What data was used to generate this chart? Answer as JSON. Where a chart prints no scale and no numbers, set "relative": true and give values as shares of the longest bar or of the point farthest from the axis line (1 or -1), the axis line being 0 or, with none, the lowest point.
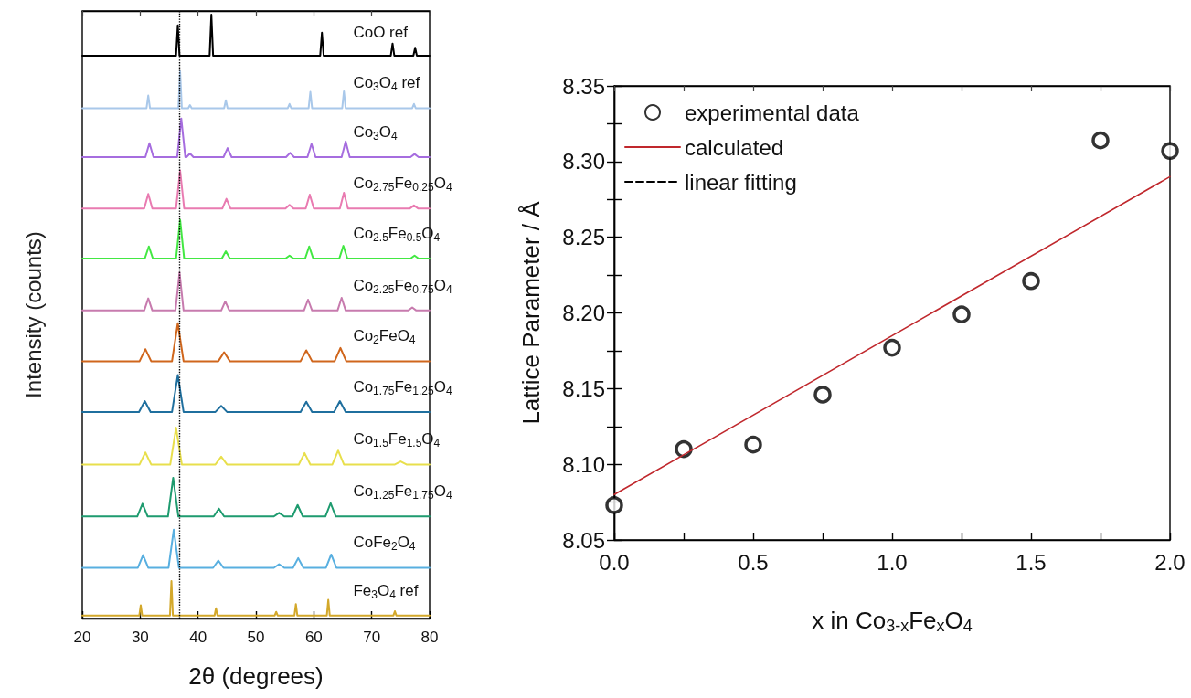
{
  "chart_data": [
    {
      "type": "line",
      "relative": true,
      "xlabel": "2θ (degrees)",
      "ylabel": "Intensity (counts)",
      "xlim": [
        20,
        80
      ],
      "xticks": [
        20,
        30,
        40,
        50,
        60,
        70,
        80
      ],
      "legend": false,
      "grid": false,
      "marker": "none",
      "ref_lines": [
        {
          "axis": "x",
          "value": 36.8,
          "line_style": "dotted",
          "color": "#000000"
        }
      ],
      "series": [
        {
          "name": "CoO ref",
          "color": "#000000",
          "x": [
            20,
            36.2,
            36.5,
            36.8,
            42,
            42.3,
            42.6,
            61.1,
            61.4,
            61.7,
            73.3,
            73.6,
            73.9,
            77.2,
            77.5,
            77.8,
            80
          ],
          "values": [
            0.932,
            0.932,
            0.982,
            0.932,
            0.932,
            1,
            0.932,
            0.932,
            0.97,
            0.932,
            0.932,
            0.952,
            0.932,
            0.932,
            0.945,
            0.932,
            0.932
          ]
        },
        {
          "name": "Co$_{3}$O$_{4}$ ref",
          "color": "#a9c8ea",
          "x": [
            20,
            31.1,
            31.4,
            31.7,
            36.6,
            36.9,
            37.2,
            38.3,
            38.6,
            38.9,
            44.5,
            44.8,
            45.1,
            55.5,
            55.8,
            56.1,
            59.1,
            59.4,
            59.7,
            64.9,
            65.2,
            65.5,
            77,
            77.3,
            77.6,
            80
          ],
          "values": [
            0.845,
            0.845,
            0.866,
            0.845,
            0.845,
            0.906,
            0.845,
            0.845,
            0.85,
            0.845,
            0.845,
            0.858,
            0.845,
            0.845,
            0.852,
            0.845,
            0.845,
            0.872,
            0.845,
            0.845,
            0.873,
            0.845,
            0.845,
            0.852,
            0.845,
            0.845
          ]
        },
        {
          "name": "Co$_{3}$O$_{4}$",
          "color": "#a66ddf",
          "x": [
            20,
            30.9,
            31.6,
            32.3,
            36.4,
            37.1,
            37.8,
            38.0,
            38.6,
            39.2,
            44.4,
            45.1,
            45.8,
            55.2,
            55.9,
            56.6,
            58.9,
            59.6,
            60.3,
            64.8,
            65.5,
            66.2,
            76.7,
            77.4,
            78.1,
            80
          ],
          "values": [
            0.764,
            0.764,
            0.787,
            0.764,
            0.764,
            0.828,
            0.764,
            0.764,
            0.77,
            0.764,
            0.764,
            0.779,
            0.764,
            0.764,
            0.771,
            0.764,
            0.764,
            0.786,
            0.764,
            0.764,
            0.79,
            0.764,
            0.764,
            0.769,
            0.764,
            0.764
          ]
        },
        {
          "name": "Co$_{2.75}$Fe$_{0.25}$O$_{4}$",
          "color": "#e97bb1",
          "x": [
            20,
            30.7,
            31.4,
            32.1,
            36.2,
            36.9,
            37.6,
            44.2,
            44.9,
            45.6,
            55.1,
            55.8,
            56.5,
            58.6,
            59.3,
            60,
            64.5,
            65.2,
            65.9,
            76.6,
            77.3,
            78,
            80
          ],
          "values": [
            0.679,
            0.679,
            0.703,
            0.679,
            0.679,
            0.742,
            0.679,
            0.679,
            0.695,
            0.679,
            0.679,
            0.685,
            0.679,
            0.679,
            0.702,
            0.679,
            0.679,
            0.705,
            0.679,
            0.679,
            0.684,
            0.679,
            0.679
          ]
        },
        {
          "name": "Co$_{2.5}$Fe$_{0.5}$O$_{4}$",
          "color": "#43e843",
          "x": [
            20,
            30.8,
            31.5,
            32.2,
            36.2,
            36.9,
            37.6,
            44.1,
            44.8,
            45.5,
            55.1,
            55.8,
            56.5,
            58.5,
            59.2,
            59.9,
            64.4,
            65.1,
            65.8,
            76.7,
            77.4,
            78.1,
            80
          ],
          "values": [
            0.596,
            0.596,
            0.616,
            0.596,
            0.596,
            0.66,
            0.596,
            0.596,
            0.608,
            0.596,
            0.596,
            0.601,
            0.596,
            0.596,
            0.616,
            0.596,
            0.596,
            0.617,
            0.596,
            0.596,
            0.601,
            0.596,
            0.596
          ]
        },
        {
          "name": "Co$_{2.25}$Fe$_{0.75}$O$_{4}$",
          "color": "#c77bae",
          "x": [
            20,
            30.7,
            31.4,
            32.1,
            36.1,
            36.8,
            37.5,
            44,
            44.7,
            45.4,
            58.3,
            59,
            59.7,
            64.1,
            64.8,
            65.5,
            76.3,
            77,
            77.7,
            80
          ],
          "values": [
            0.51,
            0.51,
            0.53,
            0.51,
            0.51,
            0.573,
            0.51,
            0.51,
            0.525,
            0.51,
            0.51,
            0.528,
            0.51,
            0.51,
            0.531,
            0.51,
            0.51,
            0.515,
            0.51,
            0.51
          ]
        },
        {
          "name": "Co$_{2}$FeO$_{4}$",
          "color": "#d0661c",
          "x": [
            20,
            29.9,
            30.9,
            31.9,
            35.5,
            36.5,
            37.5,
            43.5,
            44.5,
            45.5,
            57.7,
            58.7,
            59.7,
            63.6,
            64.6,
            65.6,
            80
          ],
          "values": [
            0.426,
            0.426,
            0.446,
            0.426,
            0.426,
            0.489,
            0.426,
            0.426,
            0.441,
            0.426,
            0.426,
            0.444,
            0.426,
            0.426,
            0.448,
            0.426,
            0.426
          ]
        },
        {
          "name": "Co$_{1.75}$Fe$_{1.25}$O$_{4}$",
          "color": "#1f6f9e",
          "x": [
            20,
            29.8,
            30.8,
            31.8,
            35.5,
            36.5,
            37.5,
            43,
            44,
            45,
            57.7,
            58.7,
            59.7,
            63.5,
            64.5,
            65.5,
            80
          ],
          "values": [
            0.342,
            0.342,
            0.36,
            0.342,
            0.342,
            0.403,
            0.342,
            0.342,
            0.352,
            0.342,
            0.342,
            0.359,
            0.342,
            0.342,
            0.36,
            0.342,
            0.342
          ]
        },
        {
          "name": "Co$_{1.5}$Fe$_{1.5}$O$_{4}$",
          "color": "#e8df4c",
          "x": [
            20,
            29.9,
            30.9,
            31.9,
            35.2,
            36.2,
            37.2,
            43,
            44,
            45,
            57.4,
            58.4,
            59.4,
            63.2,
            64.2,
            65.2,
            74,
            75,
            76,
            80
          ],
          "values": [
            0.255,
            0.255,
            0.275,
            0.255,
            0.255,
            0.316,
            0.255,
            0.255,
            0.268,
            0.255,
            0.255,
            0.274,
            0.255,
            0.255,
            0.278,
            0.255,
            0.255,
            0.26,
            0.255,
            0.255
          ]
        },
        {
          "name": "Co$_{1.25}$Fe$_{1.75}$O$_{4}$",
          "color": "#1e9b6f",
          "x": [
            20,
            29.5,
            30.4,
            31.3,
            34.8,
            35.7,
            36.6,
            42.7,
            43.6,
            44.5,
            53.1,
            54,
            54.9,
            56.3,
            57.2,
            58.1,
            62,
            62.9,
            63.8,
            80
          ],
          "values": [
            0.169,
            0.169,
            0.19,
            0.169,
            0.169,
            0.233,
            0.169,
            0.169,
            0.182,
            0.169,
            0.169,
            0.175,
            0.169,
            0.169,
            0.188,
            0.169,
            0.169,
            0.191,
            0.169,
            0.169
          ]
        },
        {
          "name": "CoFe$_{2}$O$_{4}$",
          "color": "#58afe0",
          "x": [
            20,
            29.6,
            30.5,
            31.4,
            34.9,
            35.8,
            36.7,
            42.6,
            43.5,
            44.4,
            53.1,
            54,
            54.9,
            56.4,
            57.3,
            58.2,
            62.1,
            63,
            63.9,
            80
          ],
          "values": [
            0.084,
            0.084,
            0.105,
            0.084,
            0.084,
            0.147,
            0.084,
            0.084,
            0.096,
            0.084,
            0.084,
            0.09,
            0.084,
            0.084,
            0.1,
            0.084,
            0.084,
            0.106,
            0.084,
            0.084
          ]
        },
        {
          "name": "Fe$_{3}$O$_{4}$ ref",
          "color": "#d3a82a",
          "x": [
            20,
            29.85,
            30.1,
            30.35,
            35.15,
            35.4,
            35.65,
            42.85,
            43.1,
            43.35,
            53.25,
            53.5,
            53.75,
            56.65,
            56.9,
            57.15,
            62.25,
            62.5,
            62.75,
            73.75,
            74,
            74.25,
            80
          ],
          "values": [
            0.005,
            0.005,
            0.022,
            0.005,
            0.005,
            0.062,
            0.005,
            0.005,
            0.017,
            0.005,
            0.005,
            0.011,
            0.005,
            0.005,
            0.024,
            0.005,
            0.005,
            0.031,
            0.005,
            0.005,
            0.012,
            0.005,
            0.005
          ]
        }
      ]
    },
    {
      "type": "scatter",
      "xlabel": "x in Co$_{3-x}$Fe$_{x}$O$_{4}$",
      "ylabel": "Lattice Parameter / Å",
      "xlim": [
        0,
        2
      ],
      "ylim": [
        8.05,
        8.35
      ],
      "legend": "top left",
      "grid": false,
      "xticks": [
        {
          "value": 0,
          "label": "0.0"
        },
        {
          "value": 0.25,
          "label": null
        },
        0.5,
        {
          "value": 0.75,
          "label": null
        },
        {
          "value": 1,
          "label": "1.0"
        },
        {
          "value": 1.25,
          "label": null
        },
        1.5,
        {
          "value": 1.75,
          "label": null
        },
        {
          "value": 2,
          "label": "2.0"
        }
      ],
      "yticks": [
        8.05,
        {
          "value": 8.075,
          "label": null
        },
        {
          "value": 8.1,
          "label": "8.10"
        },
        {
          "value": 8.125,
          "label": null
        },
        8.15,
        {
          "value": 8.175,
          "label": null
        },
        {
          "value": 8.2,
          "label": "8.20"
        },
        {
          "value": 8.225,
          "label": null
        },
        8.25,
        {
          "value": 8.275,
          "label": null
        },
        {
          "value": 8.3,
          "label": "8.30"
        },
        {
          "value": 8.325,
          "label": null
        },
        8.35
      ],
      "series": [
        {
          "name": "experimental data",
          "type": "scatter",
          "marker": "circle",
          "color": "#000000",
          "x": [
            0,
            0.25,
            0.5,
            0.75,
            1,
            1.25,
            1.5,
            1.75,
            2
          ],
          "values": [
            8.073,
            8.11,
            8.113,
            8.146,
            8.177,
            8.199,
            8.221,
            8.314,
            8.307
          ]
        },
        {
          "name": "calculated",
          "type": "line",
          "marker": "none",
          "line_style": "solid",
          "color": "#c0282d",
          "x": [
            0,
            2
          ],
          "values": [
            8.08,
            8.29
          ]
        },
        {
          "name": "linear fitting",
          "type": "line",
          "marker": "none",
          "line_style": "dashed",
          "color": "#000000"
        }
      ]
    }
  ]
}
